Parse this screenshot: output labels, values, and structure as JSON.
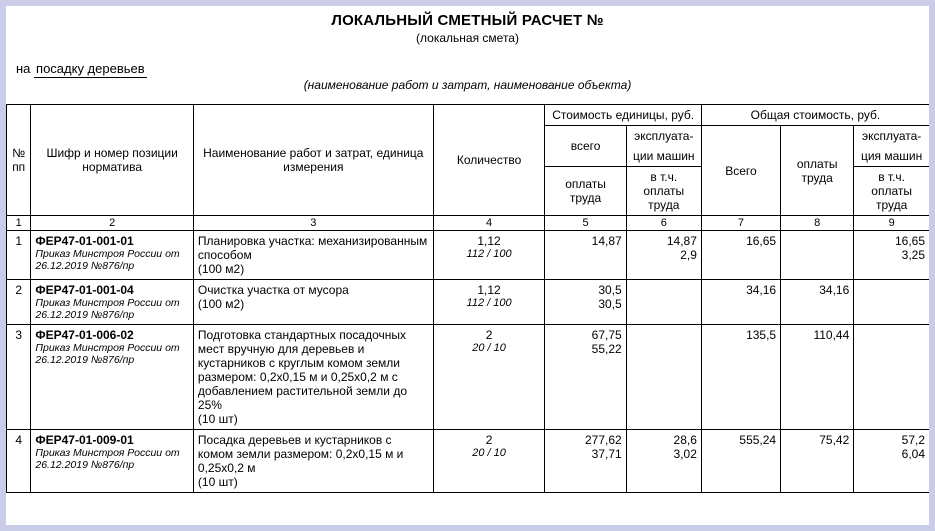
{
  "header": {
    "title": "ЛОКАЛЬНЫЙ СМЕТНЫЙ РАСЧЕТ №",
    "subtitle": "(локальная смета)",
    "topic_label": "на ",
    "topic_value": "посадку деревьев",
    "caption": "(наименование работ и затрат, наименование объекта)"
  },
  "thead": {
    "npp": "№ пп",
    "code": "Шифр и номер позиции норматива",
    "name": "Наименование работ и затрат, единица измерения",
    "qty": "Количество",
    "unit_cost": "Стоимость единицы, руб.",
    "total_cost": "Общая стоимость, руб.",
    "vsego": "всего",
    "ekspl": "эксплуата-",
    "ekspl2": "ции машин",
    "ekspl2b": "ция машин",
    "oplaty": "оплаты труда",
    "vtch": "в т.ч. оплаты труда",
    "Vsego": "Всего",
    "numrow": [
      "1",
      "2",
      "3",
      "4",
      "5",
      "6",
      "7",
      "8",
      "9"
    ]
  },
  "rows": [
    {
      "n": "1",
      "code": "ФЕР47-01-001-01",
      "src": "Приказ Минстроя России от 26.12.2019 №876/пр",
      "name": "Планировка участка: механизированным способом",
      "unit": "(100 м2)",
      "qty": "1,12",
      "qty_sub": "112 / 100",
      "c5a": "14,87",
      "c5b": "",
      "c6a": "14,87",
      "c6b": "2,9",
      "c7": "16,65",
      "c8": "",
      "c9a": "16,65",
      "c9b": "3,25"
    },
    {
      "n": "2",
      "code": "ФЕР47-01-001-04",
      "src": "Приказ Минстроя России от 26.12.2019 №876/пр",
      "name": "Очистка участка от мусора",
      "unit": "(100 м2)",
      "qty": "1,12",
      "qty_sub": "112 / 100",
      "c5a": "30,5",
      "c5b": "30,5",
      "c6a": "",
      "c6b": "",
      "c7": "34,16",
      "c8": "34,16",
      "c9a": "",
      "c9b": ""
    },
    {
      "n": "3",
      "code": "ФЕР47-01-006-02",
      "src": "Приказ Минстроя России от 26.12.2019 №876/пр",
      "name": "Подготовка стандартных посадочных мест вручную для деревьев и кустарников с круглым комом земли размером: 0,2х0,15 м и 0,25х0,2 м с добавлением растительной земли до 25%",
      "unit": "(10 шт)",
      "qty": "2",
      "qty_sub": "20 / 10",
      "c5a": "67,75",
      "c5b": "55,22",
      "c6a": "",
      "c6b": "",
      "c7": "135,5",
      "c8": "110,44",
      "c9a": "",
      "c9b": ""
    },
    {
      "n": "4",
      "code": "ФЕР47-01-009-01",
      "src": "Приказ Минстроя России от 26.12.2019 №876/пр",
      "name": "Посадка деревьев и кустарников с комом земли размером: 0,2х0,15 м и 0,25х0,2 м",
      "unit": "(10 шт)",
      "qty": "2",
      "qty_sub": "20 / 10",
      "c5a": "277,62",
      "c5b": "37,71",
      "c6a": "28,6",
      "c6b": "3,02",
      "c7": "555,24",
      "c8": "75,42",
      "c9a": "57,2",
      "c9b": "6,04"
    }
  ]
}
